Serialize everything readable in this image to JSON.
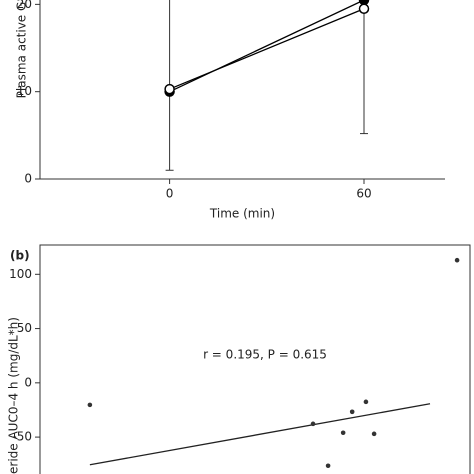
{
  "chart_data": [
    {
      "type": "line",
      "ylabel": "Plasma active G",
      "xlabel": "Time (min)",
      "x": [
        0,
        60
      ],
      "xlim": [
        -40,
        85
      ],
      "xticks": [
        0,
        60
      ],
      "ylim": [
        0,
        20.5
      ],
      "yticks": [
        0,
        10,
        20
      ],
      "series": [
        {
          "marker": "filled",
          "color": "#000000",
          "values": [
            10,
            20.5
          ]
        },
        {
          "marker": "open",
          "color": "#000000",
          "values": [
            10.3,
            19.5
          ],
          "error_low": [
            9.3,
            14.3
          ]
        }
      ]
    },
    {
      "type": "scatter",
      "panel_label": "(b)",
      "ylabel": "eride AUC0–4 h (mg/dL*h)",
      "annotation": "r = 0.195, P = 0.615",
      "xlim": [
        0,
        100
      ],
      "ylim": [
        -84,
        127
      ],
      "yticks": [
        -50,
        0,
        50,
        100
      ],
      "color": "#333333",
      "x": [
        11.6,
        63.5,
        67,
        70.5,
        72.6,
        75.8,
        77.7,
        97
      ],
      "values": [
        -20.3,
        -37.8,
        -76.4,
        -46,
        -26.7,
        -17.5,
        -47,
        113
      ],
      "fit": {
        "x": [
          11.6,
          90.7
        ],
        "values": [
          -75.5,
          -19.3
        ]
      }
    }
  ]
}
